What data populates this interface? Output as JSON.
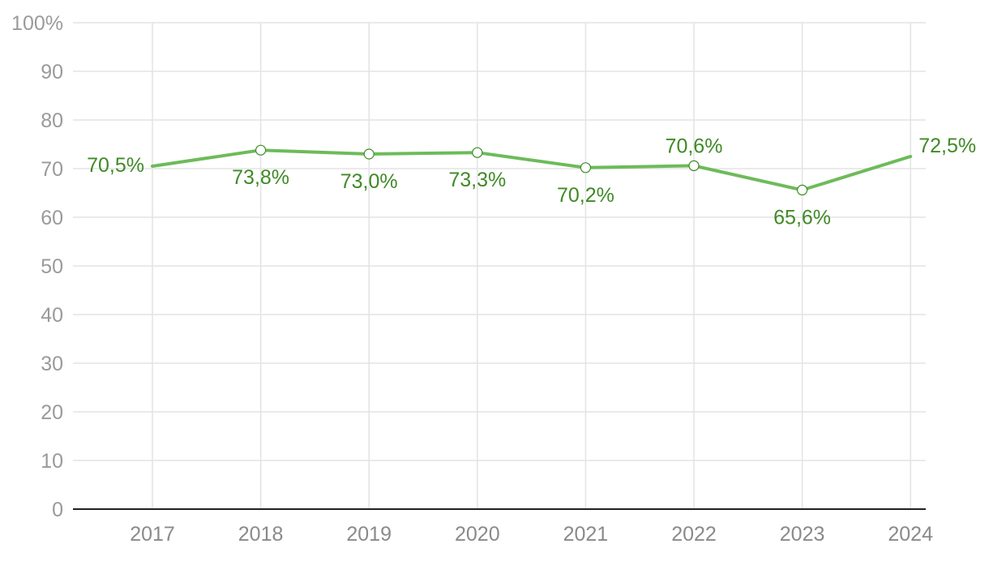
{
  "chart_data": {
    "type": "line",
    "title": "",
    "xlabel": "",
    "ylabel": "",
    "x": [
      "2017",
      "2018",
      "2019",
      "2020",
      "2021",
      "2022",
      "2023",
      "2024"
    ],
    "series": [
      {
        "name": "",
        "values": [
          70.5,
          73.8,
          73.0,
          73.3,
          70.2,
          70.6,
          65.6,
          72.5
        ],
        "labels": [
          "70,5%",
          "73,8%",
          "73,0%",
          "73,3%",
          "70,2%",
          "70,6%",
          "65,6%",
          "72,5%"
        ],
        "label_positions": [
          "left",
          "below",
          "below",
          "below",
          "below",
          "above",
          "below",
          "right"
        ],
        "markers": [
          false,
          true,
          true,
          true,
          true,
          true,
          true,
          false
        ]
      }
    ],
    "ylim": [
      0,
      100
    ],
    "yticks": [
      0,
      10,
      20,
      30,
      40,
      50,
      60,
      70,
      80,
      90,
      100
    ],
    "ytick_labels": [
      "0",
      "10",
      "20",
      "30",
      "40",
      "50",
      "60",
      "70",
      "80",
      "90",
      "100%"
    ],
    "grid": true,
    "legend": "none",
    "colors": {
      "line": "#6dbb5a",
      "label": "#3f8a26",
      "grid": "#e3e3e3",
      "axis": "#222222"
    }
  }
}
